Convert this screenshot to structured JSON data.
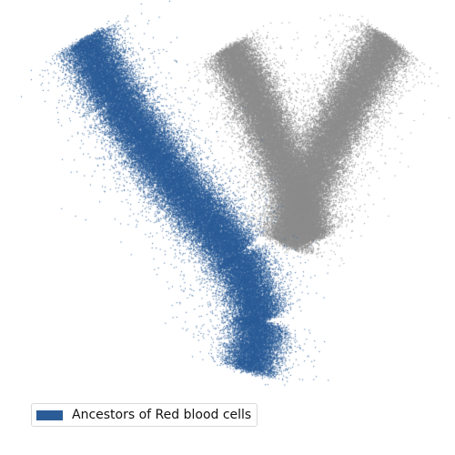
{
  "chart_data": {
    "type": "scatter",
    "title": "",
    "xlabel": "",
    "ylabel": "",
    "axes_visible": false,
    "grid": false,
    "legend_placement": "bottom-left",
    "series": [
      {
        "name": "",
        "color": "#8c8c8c",
        "highlighted": false,
        "points_approx": 70000,
        "branches": [
          {
            "path": [
              [
                0.69,
                0.54
              ],
              [
                0.62,
                0.36
              ],
              [
                0.55,
                0.2
              ],
              [
                0.48,
                0.07
              ]
            ],
            "spread": 0.028,
            "weight": 0.48
          },
          {
            "path": [
              [
                0.62,
                0.55
              ],
              [
                0.71,
                0.34
              ],
              [
                0.8,
                0.17
              ],
              [
                0.88,
                0.05
              ]
            ],
            "spread": 0.03,
            "weight": 0.52
          }
        ]
      },
      {
        "name": "Ancestors of Red blood cells",
        "color": "#2b5c97",
        "highlighted": true,
        "points_approx": 60000,
        "branches": [
          {
            "path": [
              [
                0.12,
                0.05
              ],
              [
                0.2,
                0.2
              ],
              [
                0.33,
                0.38
              ],
              [
                0.5,
                0.58
              ],
              [
                0.56,
                0.74
              ],
              [
                0.53,
                0.86
              ]
            ],
            "spread": 0.032,
            "weight": 1.0
          }
        ]
      }
    ]
  },
  "legend": {
    "label": "Ancestors of Red blood cells",
    "swatch_color": "#2b5c97"
  }
}
